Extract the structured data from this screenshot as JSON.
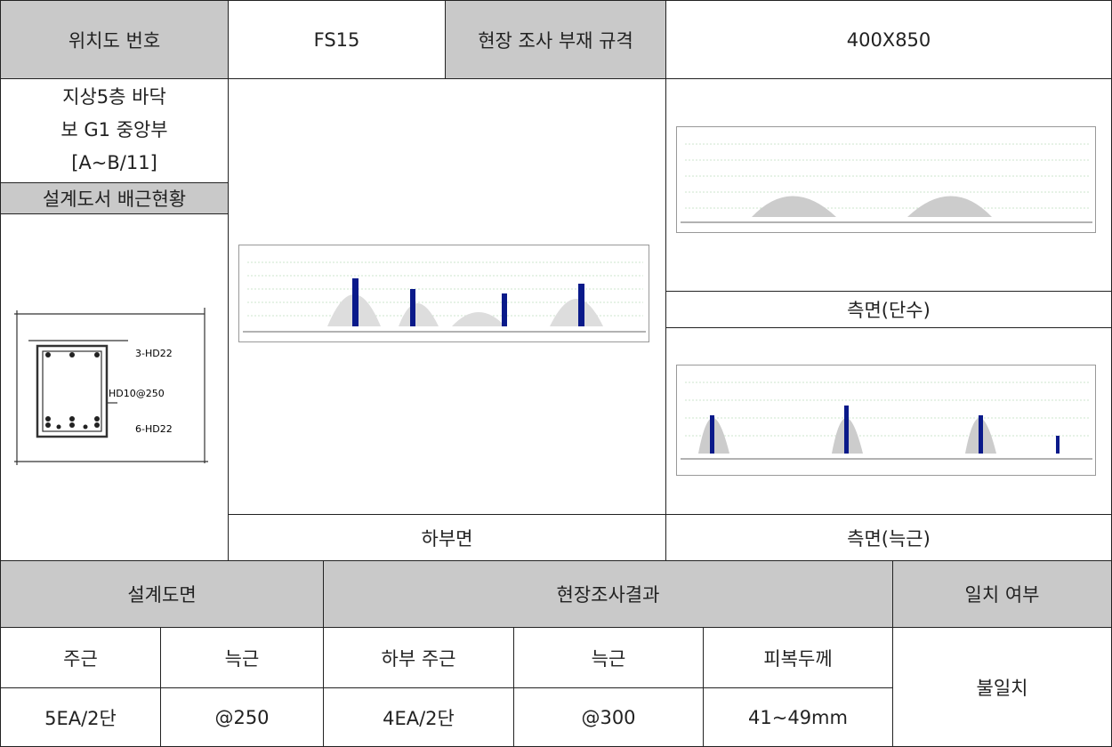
{
  "info": {
    "location_label": "위치도 번호",
    "location_value": "FS15",
    "spec_label": "현장 조사 부재 규격",
    "spec_value": "400X850"
  },
  "member": {
    "lines": [
      "지상5층 바닥",
      "보 G1 중앙부",
      "[A~B/11]"
    ],
    "design_header": "설계도서 배근현황",
    "section_labels": [
      "3-HD22",
      "HD10@250",
      "6-HD22"
    ]
  },
  "scans": {
    "bottom": "하부면",
    "side_rows": "측면(단수)",
    "side_stirrup": "측면(늑근)"
  },
  "table": {
    "groups": [
      "설계도면",
      "현장조사결과",
      "일치 여부"
    ],
    "columns": [
      "주근",
      "늑근",
      "하부 주근",
      "늑근",
      "피복두께"
    ],
    "values": [
      "5EA/2단",
      "@250",
      "4EA/2단",
      "@300",
      "41~49mm"
    ],
    "result": "불일치"
  }
}
